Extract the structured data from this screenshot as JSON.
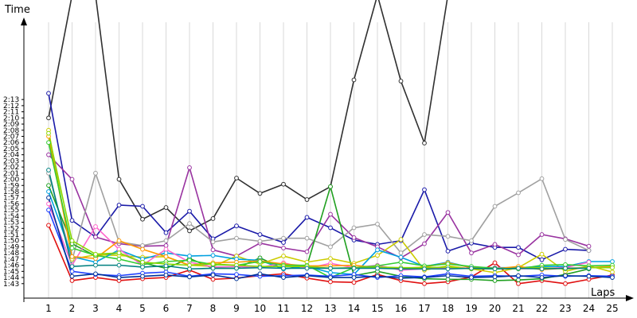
{
  "chart_data": {
    "type": "line",
    "ylabel": "Time",
    "xlabel": "Laps",
    "x": [
      1,
      2,
      3,
      4,
      5,
      6,
      7,
      8,
      9,
      10,
      11,
      12,
      13,
      14,
      15,
      16,
      17,
      18,
      19,
      20,
      21,
      22,
      23,
      24,
      25
    ],
    "ylim": [
      102,
      136
    ],
    "y_unit": "seconds (lap time m:ss)",
    "yticks": [
      "1:43",
      "1:44",
      "1:45",
      "1:46",
      "1:47",
      "1:48",
      "1:49",
      "1:50",
      "1:51",
      "1:52",
      "1:53",
      "1:54",
      "1:55",
      "1:56",
      "1:57",
      "1:58",
      "1:59",
      "2:00",
      "2:01",
      "2:02",
      "2:03",
      "2:04",
      "2:05",
      "2:06",
      "2:07",
      "2:08",
      "2:09",
      "2:10",
      "2:11",
      "2:12",
      "2:13"
    ],
    "xticks": [
      "1",
      "2",
      "3",
      "4",
      "5",
      "6",
      "7",
      "8",
      "9",
      "10",
      "11",
      "12",
      "13",
      "14",
      "15",
      "16",
      "17",
      "18",
      "19",
      "20",
      "21",
      "22",
      "23",
      "24",
      "25"
    ],
    "grid": true,
    "series": [
      {
        "color": "#303030",
        "values": [
          130.0,
          150.0,
          150.0,
          120.0,
          113.5,
          115.4,
          111.6,
          113.6,
          120.2,
          117.7,
          119.2,
          116.7,
          118.8,
          136.2,
          150.0,
          136.0,
          125.9,
          150.0,
          null,
          null,
          null,
          null,
          null,
          null,
          null
        ]
      },
      {
        "color": "#1a1aa8",
        "values": [
          134.0,
          113.3,
          110.6,
          115.8,
          115.6,
          111.3,
          114.8,
          110.3,
          112.4,
          111.0,
          109.7,
          113.8,
          112.1,
          110.1,
          109.4,
          110.0,
          118.3,
          108.3,
          109.6,
          108.9,
          108.9,
          106.9,
          108.6,
          108.4,
          null
        ]
      },
      {
        "color": "#9933a0",
        "values": [
          124.0,
          120.0,
          110.6,
          109.5,
          109.1,
          109.2,
          121.9,
          108.5,
          107.5,
          109.6,
          108.8,
          108.2,
          114.3,
          110.5,
          109.0,
          107.2,
          109.5,
          114.6,
          108.0,
          109.4,
          107.7,
          111.0,
          110.3,
          109.1,
          null
        ]
      },
      {
        "color": "#a0a0a0",
        "values": [
          121.0,
          106.8,
          121.0,
          109.8,
          109.2,
          110.0,
          112.8,
          109.8,
          110.4,
          109.9,
          110.4,
          110.4,
          109.0,
          112.1,
          112.7,
          108.0,
          111.0,
          110.7,
          110.0,
          115.6,
          117.8,
          120.1,
          110.2,
          108.4,
          null
        ]
      },
      {
        "color": "#e01010",
        "values": [
          112.5,
          103.5,
          104.0,
          103.5,
          103.8,
          104.0,
          105.2,
          103.7,
          103.9,
          104.3,
          104.6,
          103.9,
          103.3,
          103.2,
          104.5,
          103.5,
          103.0,
          103.3,
          104.1,
          106.4,
          103.0,
          103.5,
          103.0,
          103.7,
          104.4
        ]
      },
      {
        "color": "#20a020",
        "values": [
          119.0,
          109.5,
          107.5,
          108.0,
          106.4,
          105.5,
          107.1,
          105.5,
          105.5,
          107.2,
          105.4,
          105.9,
          118.8,
          104.3,
          105.0,
          104.2,
          103.8,
          103.7,
          103.7,
          103.5,
          103.6,
          103.8,
          104.5,
          105.4,
          null
        ]
      },
      {
        "color": "#cccc00",
        "values": [
          128.0,
          107.0,
          107.7,
          107.6,
          107.3,
          107.4,
          106.0,
          105.8,
          107.5,
          106.2,
          107.5,
          106.5,
          107.1,
          106.3,
          107.6,
          110.2,
          105.2,
          105.9,
          105.4,
          104.8,
          105.6,
          107.8,
          105.0,
          105.9,
          104.9
        ]
      },
      {
        "color": "#00a0e0",
        "values": [
          118.0,
          107.4,
          106.5,
          108.5,
          107.0,
          108.0,
          107.5,
          107.6,
          107.0,
          106.8,
          105.4,
          105.8,
          104.8,
          104.5,
          108.5,
          107.3,
          105.8,
          106.5,
          105.6,
          105.6,
          105.6,
          105.8,
          105.8,
          106.6,
          106.6
        ]
      },
      {
        "color": "#ff66cc",
        "values": [
          116.0,
          106.0,
          112.3,
          108.6,
          106.0,
          108.6,
          106.5,
          105.7,
          105.8,
          105.6,
          106.4,
          105.5,
          106.3,
          105.6,
          106.0,
          105.2,
          105.4,
          105.6,
          105.5,
          105.6,
          105.4,
          105.5,
          105.6,
          106.5,
          null
        ]
      },
      {
        "color": "#ff9900",
        "values": [
          127.0,
          107.4,
          107.1,
          110.0,
          108.6,
          107.4,
          106.0,
          106.4,
          106.5,
          106.7,
          106.2,
          105.9,
          105.9,
          106.0,
          105.6,
          105.5,
          105.7,
          106.4,
          105.6,
          105.4,
          105.8,
          105.3,
          105.5,
          105.6,
          105.8
        ]
      },
      {
        "color": "#33cc33",
        "values": [
          126.0,
          108.8,
          107.6,
          107.0,
          106.1,
          106.6,
          106.8,
          106.1,
          106.0,
          106.6,
          106.0,
          106.0,
          104.0,
          105.6,
          105.9,
          106.5,
          105.9,
          106.2,
          105.8,
          105.5,
          105.4,
          106.0,
          106.1,
          105.9,
          106.0
        ]
      },
      {
        "color": "#88d800",
        "values": [
          127.5,
          110.0,
          107.8,
          108.0,
          106.5,
          106.2,
          106.0,
          106.2,
          106.0,
          105.8,
          105.8,
          105.8,
          105.5,
          105.6,
          105.7,
          105.6,
          105.6,
          105.7,
          105.4,
          105.4,
          105.5,
          105.6,
          105.4,
          105.6,
          105.6
        ]
      },
      {
        "color": "#008080",
        "values": [
          121.5,
          105.8,
          106.0,
          106.0,
          105.7,
          105.9,
          105.4,
          105.5,
          105.5,
          105.6,
          105.5,
          105.5,
          105.5,
          105.5,
          105.5,
          105.4,
          105.4,
          105.4,
          105.5,
          105.4,
          105.5,
          105.4,
          105.5,
          105.5,
          null
        ]
      },
      {
        "color": "#2040ff",
        "values": [
          115.0,
          105.0,
          104.5,
          104.3,
          104.7,
          104.9,
          104.2,
          104.6,
          104.5,
          104.2,
          104.3,
          104.4,
          104.2,
          104.5,
          104.0,
          104.3,
          104.1,
          104.6,
          104.2,
          104.3,
          104.2,
          104.4,
          104.2,
          104.3,
          104.2
        ]
      },
      {
        "color": "#003399",
        "values": [
          117.0,
          104.2,
          104.6,
          104.0,
          104.2,
          104.4,
          104.1,
          104.4,
          103.8,
          104.6,
          104.0,
          104.3,
          104.0,
          104.0,
          104.2,
          103.9,
          104.0,
          104.3,
          104.0,
          104.1,
          104.3,
          104.0,
          104.3,
          104.2,
          104.0
        ]
      }
    ]
  }
}
